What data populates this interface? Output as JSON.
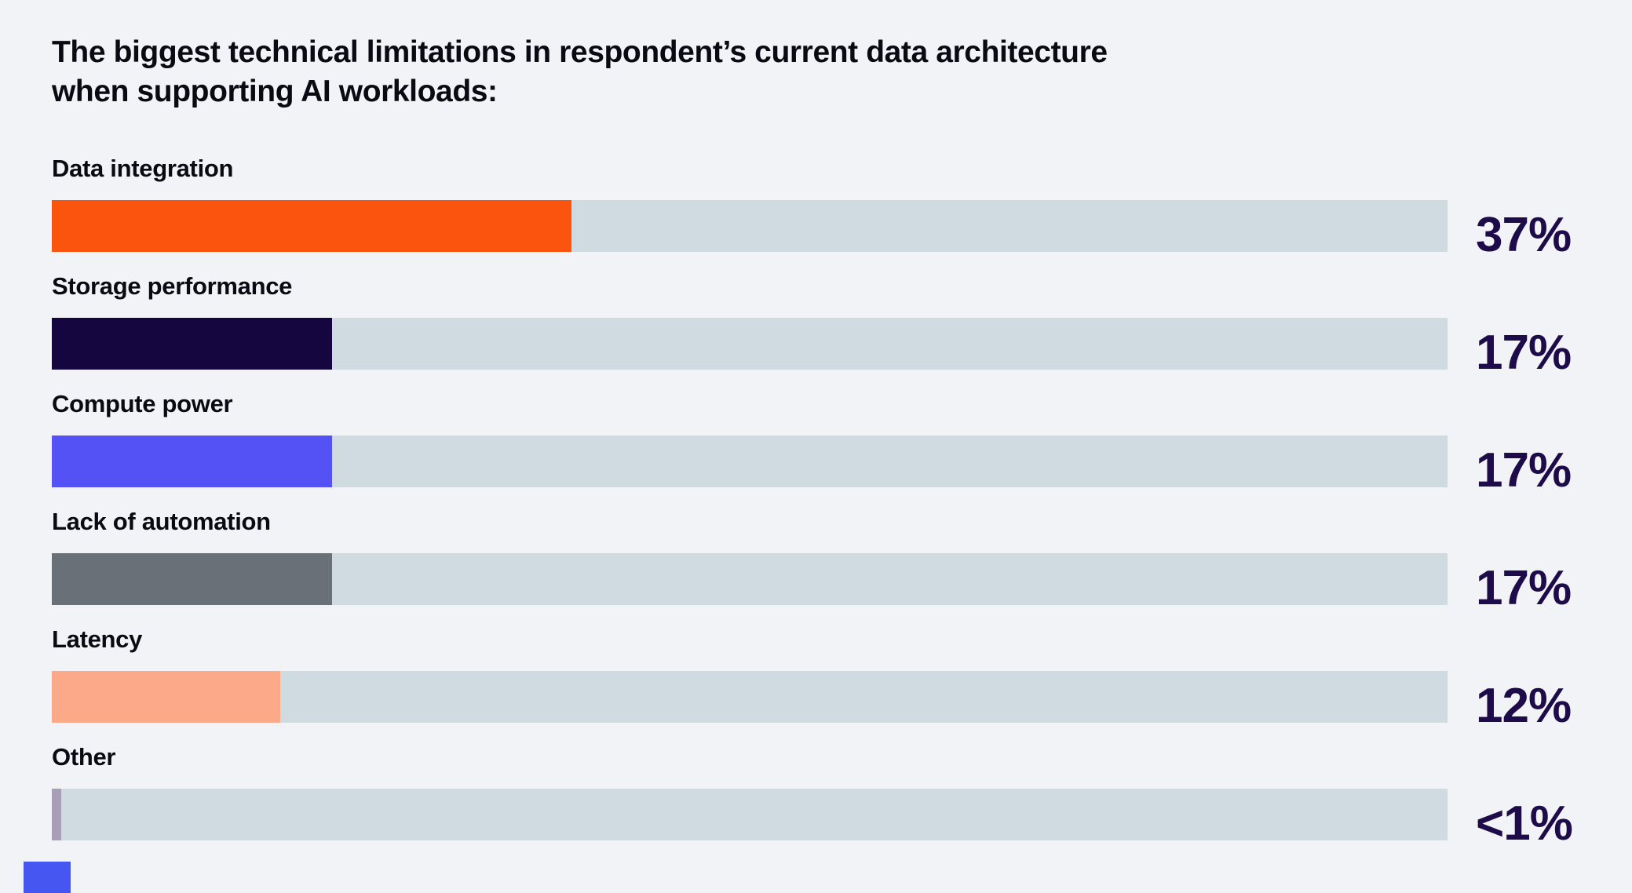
{
  "page": {
    "background": "#F1F3F7"
  },
  "title": {
    "line1": "The biggest technical limitations in respondent’s current data architecture",
    "line2": "when supporting AI workloads:"
  },
  "chart_data": {
    "type": "bar",
    "orientation": "horizontal",
    "title": "The biggest technical limitations in respondent’s current data architecture when supporting AI workloads:",
    "categories": [
      "Data integration",
      "Storage performance",
      "Compute power",
      "Lack of automation",
      "Latency",
      "Other"
    ],
    "values": [
      37,
      17,
      17,
      17,
      12,
      0.5
    ],
    "value_labels": [
      "37%",
      "17%",
      "17%",
      "17%",
      "12%",
      "<1%"
    ],
    "bar_colors": [
      "#FB540E",
      "#150640",
      "#5552F5",
      "#697077",
      "#FCA98A",
      "#A89EB5"
    ],
    "track_color": "#CFDAE1",
    "value_text_color": "#1D0B4A",
    "label_text_color": "#0A0A12",
    "xlim": [
      0,
      100
    ],
    "bar_visual_width_pct": [
      37.25,
      20.08,
      20.08,
      20.08,
      16.37,
      0.68
    ],
    "grid": false,
    "legend": "none"
  },
  "rows": [
    {
      "label": "Data integration",
      "value": "37%",
      "color": "#FB540E",
      "width": "37.25%"
    },
    {
      "label": "Storage performance",
      "value": "17%",
      "color": "#150640",
      "width": "20.08%"
    },
    {
      "label": "Compute power",
      "value": "17%",
      "color": "#5552F5",
      "width": "20.08%"
    },
    {
      "label": "Lack of automation",
      "value": "17%",
      "color": "#697077",
      "width": "20.08%"
    },
    {
      "label": "Latency",
      "value": "12%",
      "color": "#FCA98A",
      "width": "16.37%"
    },
    {
      "label": "Other",
      "value": "<1%",
      "color": "#A89EB5",
      "width": "0.68%"
    }
  ],
  "decor": {
    "footer_block_color": "#4656F0"
  }
}
